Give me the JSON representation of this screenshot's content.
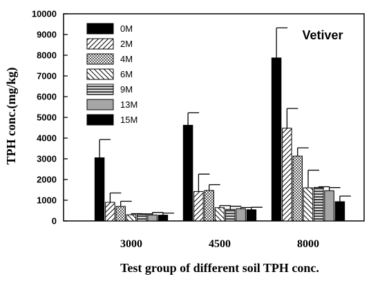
{
  "chart_data": {
    "type": "bar",
    "ylabel": "TPH conc.(mg/kg)",
    "xlabel": "Test group of different soil TPH conc.",
    "annotation": "Vetiver",
    "categories": [
      "3000",
      "4500",
      "8000"
    ],
    "ylim": [
      0,
      10000
    ],
    "yticks": [
      0,
      1000,
      2000,
      3000,
      4000,
      5000,
      6000,
      7000,
      8000,
      9000,
      10000
    ],
    "yticklabels": [
      "0",
      "1000",
      "2000",
      "3000",
      "4000",
      "5000",
      "6000",
      "7000",
      "8000",
      "9000",
      "10000"
    ],
    "grid": false,
    "legend_position": "top-left",
    "series": [
      {
        "name": "0M",
        "pattern": "solid-black",
        "values": [
          3050,
          4620,
          7870
        ],
        "errors": [
          880,
          600,
          1450
        ]
      },
      {
        "name": "2M",
        "pattern": "diagonal-hatch",
        "values": [
          900,
          1420,
          4480
        ],
        "errors": [
          450,
          840,
          950
        ]
      },
      {
        "name": "4M",
        "pattern": "crosshatch-dots",
        "values": [
          700,
          1470,
          3130
        ],
        "errors": [
          250,
          280,
          400
        ]
      },
      {
        "name": "6M",
        "pattern": "backslash-hatch",
        "values": [
          300,
          640,
          1600
        ],
        "errors": [
          50,
          100,
          850
        ]
      },
      {
        "name": "9M",
        "pattern": "horizontal-stripes",
        "values": [
          310,
          560,
          1620
        ],
        "errors": [
          30,
          150,
          30
        ]
      },
      {
        "name": "13M",
        "pattern": "solid-gray",
        "values": [
          290,
          590,
          1460
        ],
        "errors": [
          120,
          60,
          150
        ]
      },
      {
        "name": "15M",
        "pattern": "solid-black",
        "values": [
          280,
          540,
          930
        ],
        "errors": [
          100,
          120,
          270
        ]
      }
    ],
    "colors": {
      "black": "#000000",
      "gray": "#a6a6a6",
      "white": "#ffffff"
    }
  }
}
